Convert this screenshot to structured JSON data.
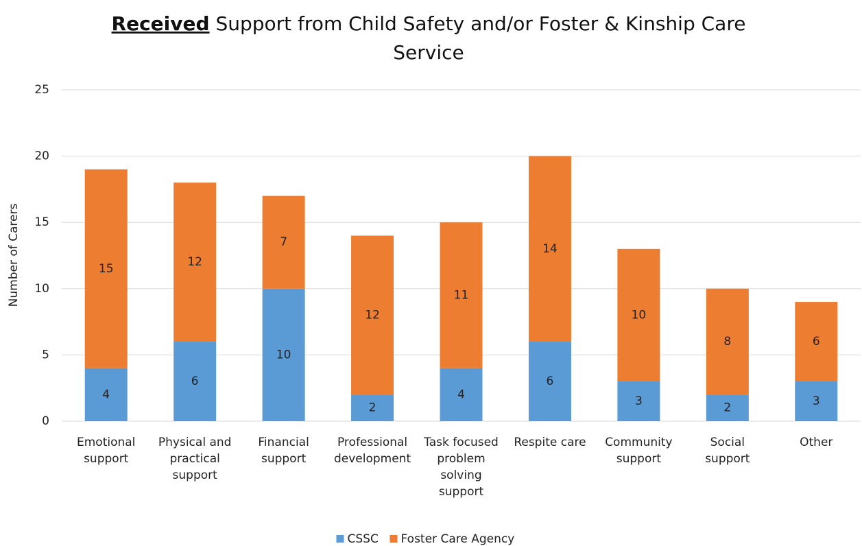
{
  "chart_data": {
    "type": "stacked_bar",
    "title": [
      "Received",
      "Support from Child Safety and/or Foster & Kinship Care",
      "Service"
    ],
    "y_label": "Number of Carers",
    "categories": [
      "Emotional support",
      "Physical and practical support",
      "Financial support",
      "Professional development",
      "Task focused problem solving support",
      "Respite care",
      "Community support",
      "Social support",
      "Other"
    ],
    "series": [
      {
        "name": "CSSC",
        "color": "#5b9bd5",
        "values": [
          4,
          6,
          10,
          2,
          4,
          6,
          3,
          2,
          3
        ]
      },
      {
        "name": "Foster Care Agency",
        "color": "#ed7d31",
        "values": [
          15,
          12,
          7,
          12,
          11,
          14,
          10,
          8,
          6
        ]
      }
    ],
    "ylim": [
      0,
      25
    ],
    "yticks": [
      0,
      5,
      10,
      15,
      20,
      25
    ],
    "grid": true,
    "legend": "bottom"
  }
}
